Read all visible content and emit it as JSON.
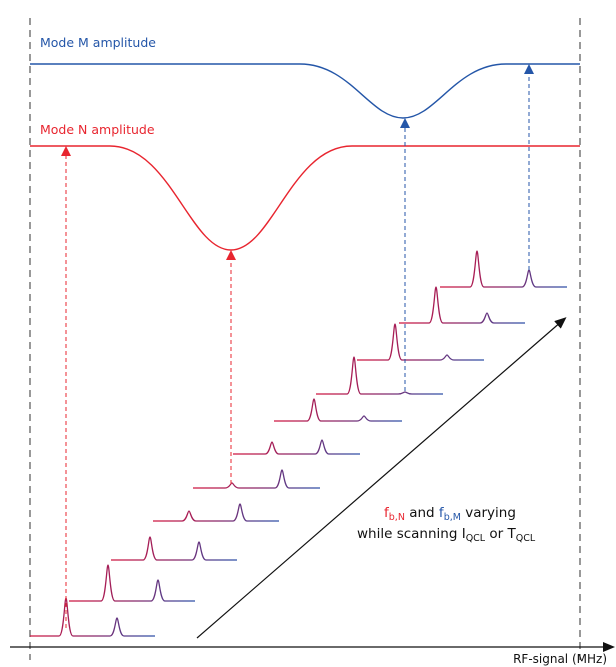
{
  "labels": {
    "mode_m": "Mode M amplitude",
    "mode_n": "Mode N amplitude",
    "x_axis": "RF-signal (MHz)",
    "annotation": {
      "f_letter_n": "f",
      "sub_n": "b,N",
      "and_word": " and ",
      "f_letter_m": "f",
      "sub_m": "b,M",
      "varying": "  varying",
      "line2_prefix": "while scanning I",
      "sub_i": "QCL",
      "or_word": " or T",
      "sub_t": "QCL"
    }
  },
  "colors": {
    "mode_m": "#2456a8",
    "mode_n": "#e8252f",
    "text_dark": "#111111",
    "guide": "#555555"
  }
}
